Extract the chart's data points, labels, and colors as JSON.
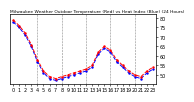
{
  "title": "Milwaukee Weather Outdoor Temperature (Red) vs Heat Index (Blue) (24 Hours)",
  "hours": [
    0,
    1,
    2,
    3,
    4,
    5,
    6,
    7,
    8,
    9,
    10,
    11,
    12,
    13,
    14,
    15,
    16,
    17,
    18,
    19,
    20,
    21,
    22,
    23
  ],
  "temperature": [
    79,
    76,
    72,
    66,
    58,
    52,
    49,
    48,
    49,
    50,
    51,
    52,
    53,
    55,
    62,
    65,
    63,
    58,
    55,
    52,
    50,
    49,
    52,
    54
  ],
  "heat_index": [
    78,
    75,
    71,
    65,
    57,
    51,
    48,
    47,
    48,
    49,
    50,
    51,
    52,
    54,
    61,
    64,
    62,
    57,
    54,
    51,
    49,
    48,
    51,
    53
  ],
  "temp_color": "#ff0000",
  "heat_color": "#0000ff",
  "bg_color": "#ffffff",
  "grid_color": "#888888",
  "ylim_min": 45,
  "ylim_max": 82,
  "ytick_values": [
    50,
    55,
    60,
    65,
    70,
    75,
    80
  ],
  "ytick_labels": [
    "50",
    "55",
    "60",
    "65",
    "70",
    "75",
    "80"
  ],
  "tick_fontsize": 3.5,
  "title_fontsize": 3.2,
  "line_style": "--",
  "line_width": 0.7,
  "marker": ".",
  "marker_size": 1.5,
  "grid_hours": [
    4,
    8,
    12,
    16,
    20
  ],
  "grid_linestyle": "--",
  "grid_linewidth": 0.4
}
